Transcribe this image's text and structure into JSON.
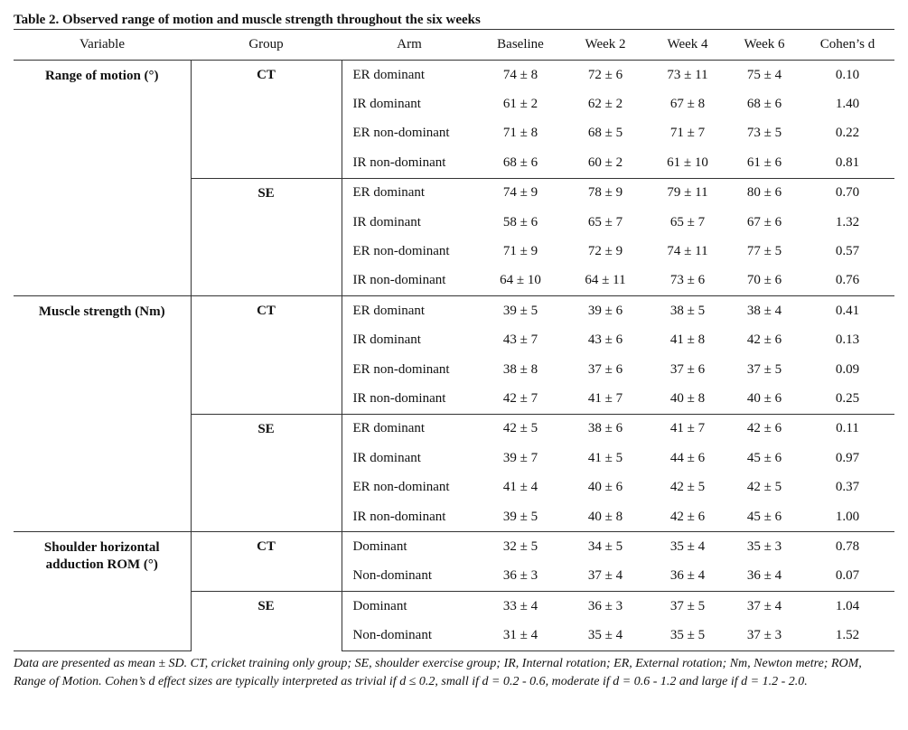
{
  "title": "Table 2. Observed range of motion and muscle strength throughout the six weeks",
  "table": {
    "header": [
      "Variable",
      "Group",
      "Arm",
      "Baseline",
      "Week 2",
      "Week 4",
      "Week 6",
      "Cohen’s d"
    ],
    "variables": [
      {
        "name": "Range of motion (°)",
        "groups": [
          {
            "name": "CT",
            "rows": [
              [
                "ER dominant",
                "74 ± 8",
                "72 ± 6",
                "73 ± 11",
                "75 ± 4",
                "0.10"
              ],
              [
                "IR dominant",
                "61 ± 2",
                "62 ± 2",
                "67 ± 8",
                "68 ± 6",
                "1.40"
              ],
              [
                "ER non-dominant",
                "71 ± 8",
                "68 ± 5",
                "71 ± 7",
                "73 ± 5",
                "0.22"
              ],
              [
                "IR non-dominant",
                "68 ± 6",
                "60 ± 2",
                "61 ± 10",
                "61 ± 6",
                "0.81"
              ]
            ]
          },
          {
            "name": "SE",
            "rows": [
              [
                "ER dominant",
                "74 ± 9",
                "78 ± 9",
                "79 ± 11",
                "80 ± 6",
                "0.70"
              ],
              [
                "IR dominant",
                "58 ± 6",
                "65 ± 7",
                "65 ± 7",
                "67 ± 6",
                "1.32"
              ],
              [
                "ER non-dominant",
                "71 ± 9",
                "72 ± 9",
                "74 ± 11",
                "77 ± 5",
                "0.57"
              ],
              [
                "IR non-dominant",
                "64 ± 10",
                "64 ± 11",
                "73 ± 6",
                "70 ± 6",
                "0.76"
              ]
            ]
          }
        ]
      },
      {
        "name": "Muscle strength (Nm)",
        "groups": [
          {
            "name": "CT",
            "rows": [
              [
                "ER dominant",
                "39 ± 5",
                "39 ± 6",
                "38 ± 5",
                "38 ± 4",
                "0.41"
              ],
              [
                "IR dominant",
                "43 ± 7",
                "43 ± 6",
                "41 ± 8",
                "42 ± 6",
                "0.13"
              ],
              [
                "ER non-dominant",
                "38 ± 8",
                "37 ± 6",
                "37 ± 6",
                "37 ± 5",
                "0.09"
              ],
              [
                "IR non-dominant",
                "42 ± 7",
                "41 ± 7",
                "40 ± 8",
                "40 ± 6",
                "0.25"
              ]
            ]
          },
          {
            "name": "SE",
            "rows": [
              [
                "ER dominant",
                "42 ± 5",
                "38 ± 6",
                "41 ± 7",
                "42 ± 6",
                "0.11"
              ],
              [
                "IR dominant",
                "39 ± 7",
                "41 ± 5",
                "44 ± 6",
                "45 ± 6",
                "0.97"
              ],
              [
                "ER non-dominant",
                "41 ± 4",
                "40 ± 6",
                "42 ± 5",
                "42 ± 5",
                "0.37"
              ],
              [
                "IR non-dominant",
                "39 ± 5",
                "40 ± 8",
                "42 ± 6",
                "45 ± 6",
                "1.00"
              ]
            ]
          }
        ]
      },
      {
        "name": "Shoulder horizontal adduction ROM (°)",
        "groups": [
          {
            "name": "CT",
            "rows": [
              [
                "Dominant",
                "32 ± 5",
                "34 ± 5",
                "35 ± 4",
                "35 ± 3",
                "0.78"
              ],
              [
                "Non-dominant",
                "36 ± 3",
                "37 ± 4",
                "36 ± 4",
                "36 ± 4",
                "0.07"
              ]
            ]
          },
          {
            "name": "SE",
            "rows": [
              [
                "Dominant",
                "33 ± 4",
                "36 ± 3",
                "37 ± 5",
                "37 ± 4",
                "1.04"
              ],
              [
                "Non-dominant",
                "31 ± 4",
                "35 ± 4",
                "35 ± 5",
                "37 ± 3",
                "1.52"
              ]
            ]
          }
        ]
      }
    ]
  },
  "footnote": "Data are presented as mean ± SD. CT, cricket training only group; SE, shoulder exercise group; IR, Internal rotation; ER, External rotation; Nm, Newton metre; ROM, Range of Motion. Cohen’s d effect sizes are typically interpreted as trivial if d ≤ 0.2, small if d = 0.2 - 0.6, moderate if d = 0.6 - 1.2 and large if d = 1.2 - 2.0."
}
